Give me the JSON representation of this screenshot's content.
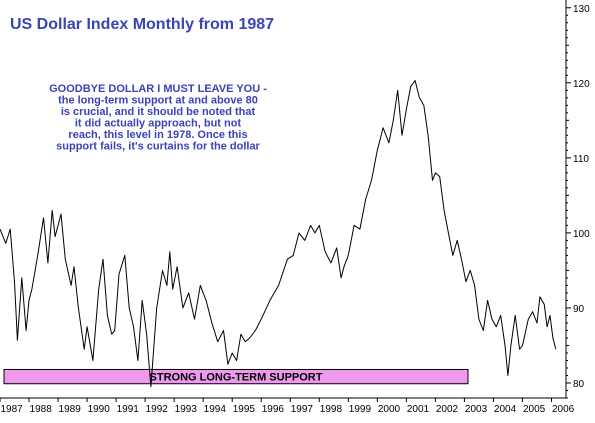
{
  "chart_data": {
    "type": "line",
    "title": "US Dollar Index Monthly from 1987",
    "annotation": [
      "GOODBYE DOLLAR I MUST LEAVE YOU -",
      "the long-term support at and above 80",
      "is crucial, and it should be noted that",
      "it did actually approach, but not",
      "reach, this level in 1978. Once this",
      "support fails, it's curtains for the dollar"
    ],
    "support_label": "STRONG LONG-TERM SUPPORT",
    "support_zone": [
      79.9,
      81.8
    ],
    "ylim": [
      78,
      130.5
    ],
    "yticks": [
      80,
      90,
      100,
      110,
      120,
      130
    ],
    "xlim": [
      1987.0,
      2006.5
    ],
    "xtick_labels": [
      "1987",
      "1988",
      "1989",
      "1990",
      "1991",
      "1992",
      "1993",
      "1994",
      "1995",
      "1996",
      "1997",
      "1998",
      "1999",
      "2000",
      "2001",
      "2002",
      "2003",
      "2004",
      "2005",
      "2006"
    ],
    "series": [
      {
        "x": [
          1987.0,
          1987.2,
          1987.35,
          1987.5,
          1987.6,
          1987.75,
          1987.9,
          1988.0,
          1988.1,
          1988.3,
          1988.5,
          1988.65,
          1988.8,
          1988.9,
          1989.1,
          1989.25,
          1989.45,
          1989.55,
          1989.7,
          1989.9,
          1990.0,
          1990.2,
          1990.4,
          1990.55,
          1990.7,
          1990.85,
          1990.95,
          1991.1,
          1991.3,
          1991.45,
          1991.6,
          1991.75,
          1991.9,
          1992.05,
          1992.2,
          1992.4,
          1992.6,
          1992.75,
          1992.85,
          1992.95,
          1993.1,
          1993.3,
          1993.5,
          1993.7,
          1993.9,
          1994.1,
          1994.3,
          1994.5,
          1994.7,
          1994.85,
          1995.0,
          1995.15,
          1995.3,
          1995.45,
          1995.6,
          1995.8,
          1996.0,
          1996.3,
          1996.6,
          1996.9,
          1997.1,
          1997.3,
          1997.5,
          1997.7,
          1997.85,
          1998.0,
          1998.2,
          1998.4,
          1998.6,
          1998.75,
          1998.85,
          1999.0,
          1999.2,
          1999.4,
          1999.6,
          1999.8,
          2000.0,
          2000.2,
          2000.4,
          2000.55,
          2000.7,
          2000.85,
          2001.0,
          2001.15,
          2001.3,
          2001.45,
          2001.6,
          2001.75,
          2001.9,
          2002.0,
          2002.15,
          2002.3,
          2002.45,
          2002.6,
          2002.75,
          2002.9,
          2003.05,
          2003.2,
          2003.35,
          2003.5,
          2003.65,
          2003.8,
          2003.95,
          2004.1,
          2004.25,
          2004.4,
          2004.5,
          2004.6,
          2004.75,
          2004.9,
          2005.0,
          2005.2,
          2005.35,
          2005.5,
          2005.6,
          2005.75,
          2005.85,
          2005.95,
          2006.05,
          2006.15
        ],
        "values": [
          100.5,
          98.6,
          100.5,
          93.5,
          85.7,
          94.0,
          87.0,
          91.0,
          92.5,
          97.0,
          102.0,
          96.0,
          103.0,
          99.5,
          102.5,
          96.5,
          93.0,
          95.5,
          90.0,
          84.5,
          87.5,
          83.0,
          92.5,
          96.5,
          89.0,
          86.5,
          87.0,
          94.5,
          97.0,
          90.0,
          87.5,
          83.0,
          91.0,
          86.5,
          79.5,
          90.0,
          95.0,
          93.0,
          97.5,
          92.5,
          95.5,
          90.0,
          92.0,
          88.5,
          93.0,
          91.0,
          88.0,
          85.5,
          87.0,
          82.5,
          84.0,
          83.0,
          86.5,
          85.5,
          86.0,
          87.0,
          88.5,
          91.0,
          93.0,
          96.5,
          97.0,
          100.0,
          99.0,
          101.0,
          100.0,
          101.0,
          97.5,
          96.0,
          98.0,
          94.0,
          95.5,
          97.0,
          101.0,
          100.5,
          104.5,
          107.0,
          111.0,
          114.0,
          112.0,
          115.0,
          119.0,
          113.0,
          116.5,
          119.5,
          120.3,
          118.0,
          117.0,
          113.0,
          107.0,
          108.0,
          107.5,
          103.0,
          100.0,
          97.0,
          99.0,
          96.5,
          93.5,
          95.0,
          93.0,
          88.5,
          87.0,
          91.0,
          88.5,
          87.5,
          89.0,
          85.0,
          81.0,
          85.0,
          89.0,
          84.5,
          85.0,
          88.5,
          89.5,
          88.0,
          91.5,
          90.5,
          87.5,
          89.0,
          86.0,
          84.5
        ]
      }
    ],
    "colors": {
      "title": "#3a43b8",
      "annotation": "#3a43b8",
      "line": "#000000",
      "support_fill": "#ee99ee",
      "support_border": "#000000",
      "axis": "#000000",
      "tick_text": "#000000"
    }
  }
}
